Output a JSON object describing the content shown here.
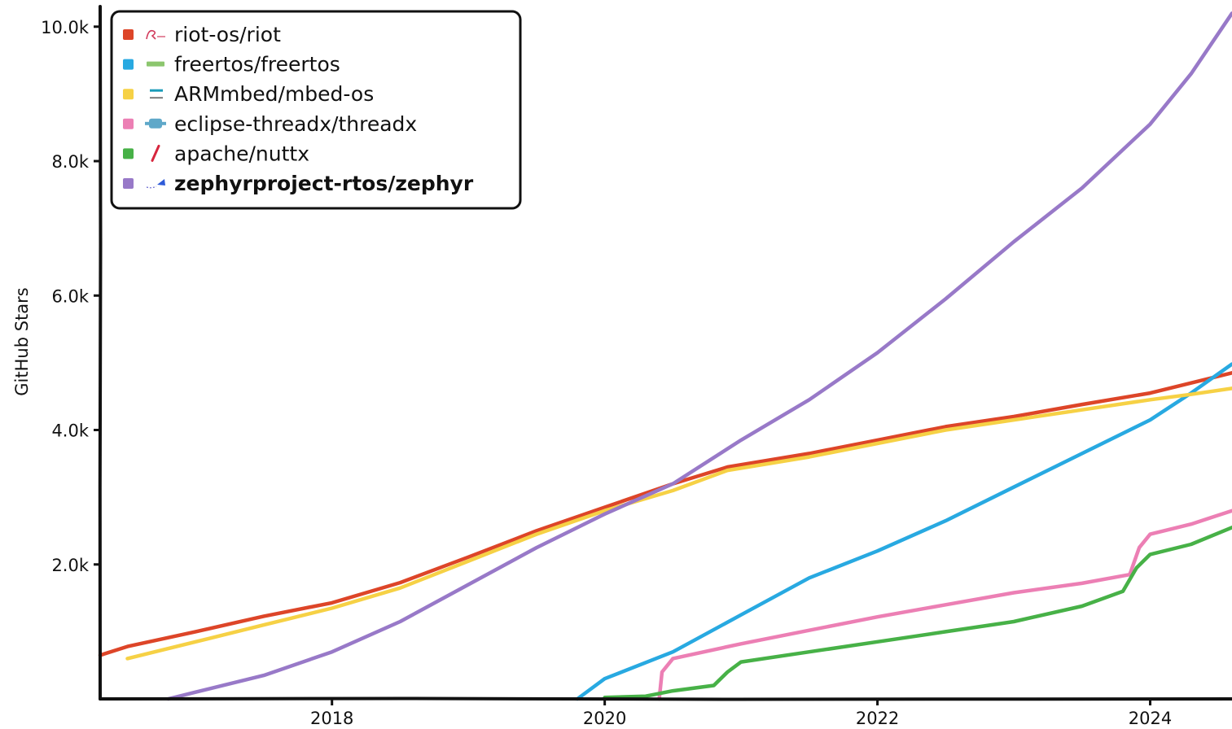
{
  "chart_data": {
    "type": "line",
    "title": "",
    "xlabel": "",
    "ylabel": "GitHub Stars",
    "xlim": [
      2016.3,
      2024.6
    ],
    "ylim": [
      0,
      10300
    ],
    "x_ticks": [
      2018,
      2020,
      2022,
      2024
    ],
    "x_tick_labels": [
      "2018",
      "2020",
      "2022",
      "2024"
    ],
    "y_ticks": [
      2000,
      4000,
      6000,
      8000,
      10000
    ],
    "y_tick_labels": [
      "2.0k",
      "4.0k",
      "6.0k",
      "8.0k",
      "10.0k"
    ],
    "grid": false,
    "legend_position": "top-left",
    "series": [
      {
        "name": "riot-os/riot",
        "color": "#dd4528",
        "icon": "riot-logo-icon",
        "bold": false,
        "x": [
          2016.3,
          2016.5,
          2017.0,
          2017.5,
          2018.0,
          2018.5,
          2019.0,
          2019.5,
          2020.0,
          2020.5,
          2020.9,
          2021.5,
          2022.0,
          2022.5,
          2023.0,
          2023.5,
          2024.0,
          2024.3,
          2024.6
        ],
        "y": [
          650,
          780,
          1000,
          1230,
          1430,
          1730,
          2110,
          2500,
          2850,
          3200,
          3450,
          3650,
          3850,
          4050,
          4200,
          4380,
          4550,
          4700,
          4850
        ]
      },
      {
        "name": "freertos/freertos",
        "color": "#28a9e1",
        "icon": "freertos-logo-icon",
        "bold": false,
        "x": [
          2019.8,
          2020.0,
          2020.5,
          2021.0,
          2021.5,
          2022.0,
          2022.5,
          2023.0,
          2023.5,
          2024.0,
          2024.3,
          2024.6
        ],
        "y": [
          0,
          300,
          700,
          1250,
          1800,
          2200,
          2650,
          3150,
          3650,
          4150,
          4550,
          4980
        ]
      },
      {
        "name": "ARMmbed/mbed-os",
        "color": "#f6d145",
        "icon": "arm-mbed-logo-icon",
        "bold": false,
        "x": [
          2016.5,
          2017.0,
          2017.5,
          2018.0,
          2018.5,
          2019.0,
          2019.5,
          2020.0,
          2020.5,
          2020.9,
          2021.5,
          2022.0,
          2022.5,
          2023.0,
          2023.5,
          2024.0,
          2024.3,
          2024.6
        ],
        "y": [
          600,
          850,
          1100,
          1350,
          1650,
          2050,
          2450,
          2800,
          3100,
          3400,
          3600,
          3800,
          4000,
          4150,
          4300,
          4450,
          4530,
          4620
        ]
      },
      {
        "name": "eclipse-threadx/threadx",
        "color": "#ec7fb4",
        "icon": "threadx-logo-icon",
        "bold": false,
        "x": [
          2020.4,
          2020.42,
          2020.5,
          2021.0,
          2021.5,
          2022.0,
          2022.5,
          2023.0,
          2023.5,
          2023.85,
          2023.92,
          2024.0,
          2024.3,
          2024.6
        ],
        "y": [
          0,
          400,
          600,
          820,
          1020,
          1220,
          1400,
          1580,
          1720,
          1850,
          2250,
          2450,
          2600,
          2800
        ]
      },
      {
        "name": "apache/nuttx",
        "color": "#47b147",
        "icon": "apache-feather-icon",
        "bold": false,
        "x": [
          2020.0,
          2020.3,
          2020.5,
          2020.8,
          2020.9,
          2021.0,
          2021.5,
          2022.0,
          2022.5,
          2023.0,
          2023.5,
          2023.8,
          2023.9,
          2024.0,
          2024.3,
          2024.6
        ],
        "y": [
          20,
          40,
          120,
          200,
          400,
          550,
          700,
          850,
          1000,
          1150,
          1380,
          1600,
          1950,
          2150,
          2300,
          2550
        ]
      },
      {
        "name": "zephyrproject-rtos/zephyr",
        "color": "#9879c8",
        "icon": "zephyr-kite-icon",
        "bold": true,
        "x": [
          2016.8,
          2017.0,
          2017.5,
          2018.0,
          2018.5,
          2019.0,
          2019.5,
          2020.0,
          2020.5,
          2021.0,
          2021.5,
          2022.0,
          2022.5,
          2023.0,
          2023.5,
          2024.0,
          2024.3,
          2024.6
        ],
        "y": [
          0,
          100,
          350,
          700,
          1150,
          1700,
          2250,
          2750,
          3200,
          3850,
          4450,
          5150,
          5950,
          6800,
          7600,
          8550,
          9300,
          10200
        ]
      }
    ]
  }
}
